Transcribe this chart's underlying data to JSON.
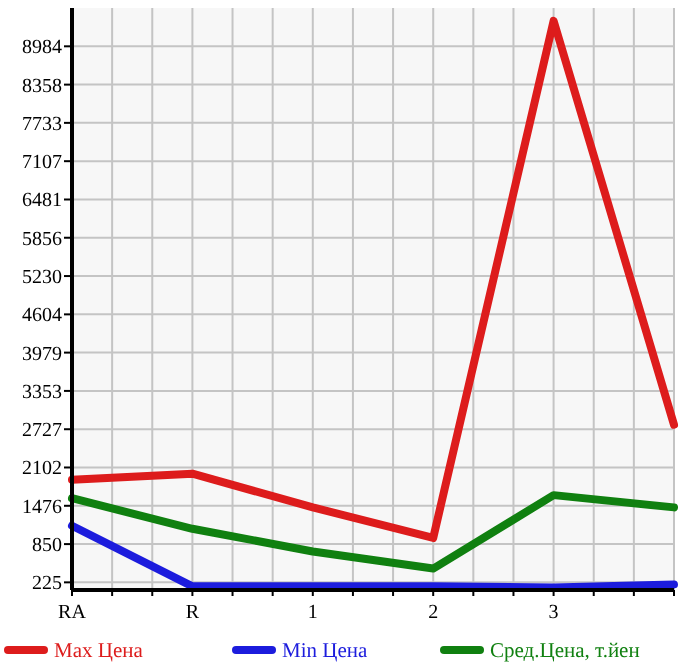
{
  "chart_data": {
    "type": "line",
    "categories": [
      "RA",
      "R",
      "1",
      "2",
      "3",
      null
    ],
    "series": [
      {
        "name": "Max Цена",
        "color": "#dd1c1c",
        "values": [
          1900,
          2000,
          1450,
          950,
          9400,
          2800
        ]
      },
      {
        "name": "Min Цена",
        "color": "#1c1cdd",
        "values": [
          1150,
          160,
          160,
          160,
          140,
          190
        ]
      },
      {
        "name": "Сред.Цена, т.йен",
        "color": "#108010",
        "values": [
          1600,
          1100,
          730,
          450,
          1650,
          1450
        ]
      }
    ],
    "ylim": [
      100,
      9610
    ],
    "yticks": [
      225,
      850,
      1476,
      2102,
      2727,
      3353,
      3979,
      4604,
      5230,
      5856,
      6481,
      7107,
      7733,
      8358,
      8984
    ],
    "grid": true,
    "legend": "bottom",
    "marker": "none",
    "line_style": "solid"
  }
}
